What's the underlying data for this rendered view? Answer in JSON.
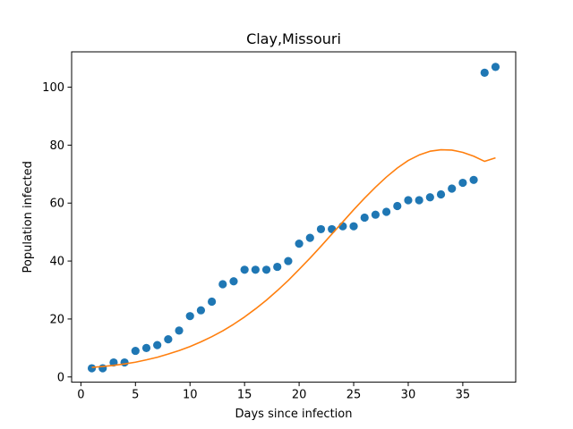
{
  "chart_data": {
    "type": "scatter",
    "title": "Clay,Missouri",
    "xlabel": "Days since infection",
    "ylabel": "Population infected",
    "xlim": [
      -0.85,
      39.85
    ],
    "ylim": [
      -1.8,
      112.2
    ],
    "xticks": [
      0,
      5,
      10,
      15,
      20,
      25,
      30,
      35
    ],
    "yticks": [
      0,
      20,
      40,
      60,
      80,
      100
    ],
    "grid": false,
    "series": [
      {
        "kind": "scatter",
        "color": "#1f77b4",
        "x": [
          1,
          2,
          3,
          4,
          5,
          6,
          7,
          8,
          9,
          10,
          11,
          12,
          13,
          14,
          15,
          16,
          17,
          18,
          19,
          20,
          21,
          22,
          23,
          24,
          25,
          26,
          27,
          28,
          29,
          30,
          31,
          32,
          33,
          34,
          35,
          36,
          37,
          38
        ],
        "y": [
          3,
          3,
          5,
          5,
          9,
          10,
          11,
          13,
          16,
          21,
          23,
          26,
          32,
          33,
          37,
          37,
          37,
          38,
          40,
          46,
          48,
          51,
          51,
          52,
          52,
          55,
          56,
          57,
          59,
          61,
          61,
          62,
          63,
          65,
          67,
          68,
          105,
          107
        ]
      },
      {
        "kind": "line",
        "color": "#ff7f0e",
        "x": [
          1,
          2,
          3,
          4,
          5,
          6,
          7,
          8,
          9,
          10,
          11,
          12,
          13,
          14,
          15,
          16,
          17,
          18,
          19,
          20,
          21,
          22,
          23,
          24,
          25,
          26,
          27,
          28,
          29,
          30,
          31,
          32,
          33,
          34,
          35,
          36,
          37,
          38
        ],
        "y": [
          3.3,
          3.6,
          4.0,
          4.5,
          5.1,
          5.9,
          6.8,
          7.9,
          9.1,
          10.5,
          12.1,
          13.9,
          15.9,
          18.2,
          20.7,
          23.5,
          26.5,
          29.8,
          33.3,
          37.1,
          41.0,
          45.1,
          49.3,
          53.5,
          57.7,
          61.7,
          65.5,
          69.0,
          72.1,
          74.7,
          76.6,
          77.9,
          78.4,
          78.3,
          77.5,
          76.2,
          74.4,
          75.6
        ]
      }
    ]
  }
}
